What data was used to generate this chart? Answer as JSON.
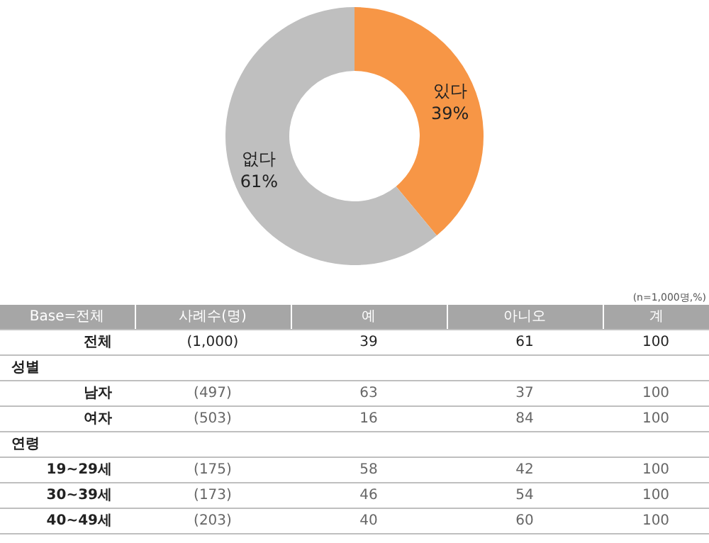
{
  "chart_data": [
    {
      "type": "donut",
      "categories": [
        "있다",
        "없다"
      ],
      "values": [
        39,
        61
      ],
      "colors": [
        "#f79646",
        "#bfbfbf"
      ],
      "value_labels": [
        "39%",
        "61%"
      ],
      "legend": false
    },
    {
      "type": "other",
      "annotations": [
        "(n=1,000명,%)"
      ],
      "categories": [
        "Base=전체",
        "사례수(명)",
        "예",
        "아니오",
        "계"
      ],
      "y_categories": [
        "전체",
        "성별",
        "남자",
        "여자",
        "연령",
        "19~29세",
        "30~39세",
        "40~49세"
      ],
      "cell_labels": [
        [
          "(1,000)",
          "39",
          "61",
          "100"
        ],
        [
          null,
          null,
          null,
          null
        ],
        [
          "(497)",
          "63",
          "37",
          "100"
        ],
        [
          "(503)",
          "16",
          "84",
          "100"
        ],
        [
          null,
          null,
          null,
          null
        ],
        [
          "(175)",
          "58",
          "42",
          "100"
        ],
        [
          "(173)",
          "46",
          "54",
          "100"
        ],
        [
          "(203)",
          "40",
          "60",
          "100"
        ]
      ]
    }
  ]
}
